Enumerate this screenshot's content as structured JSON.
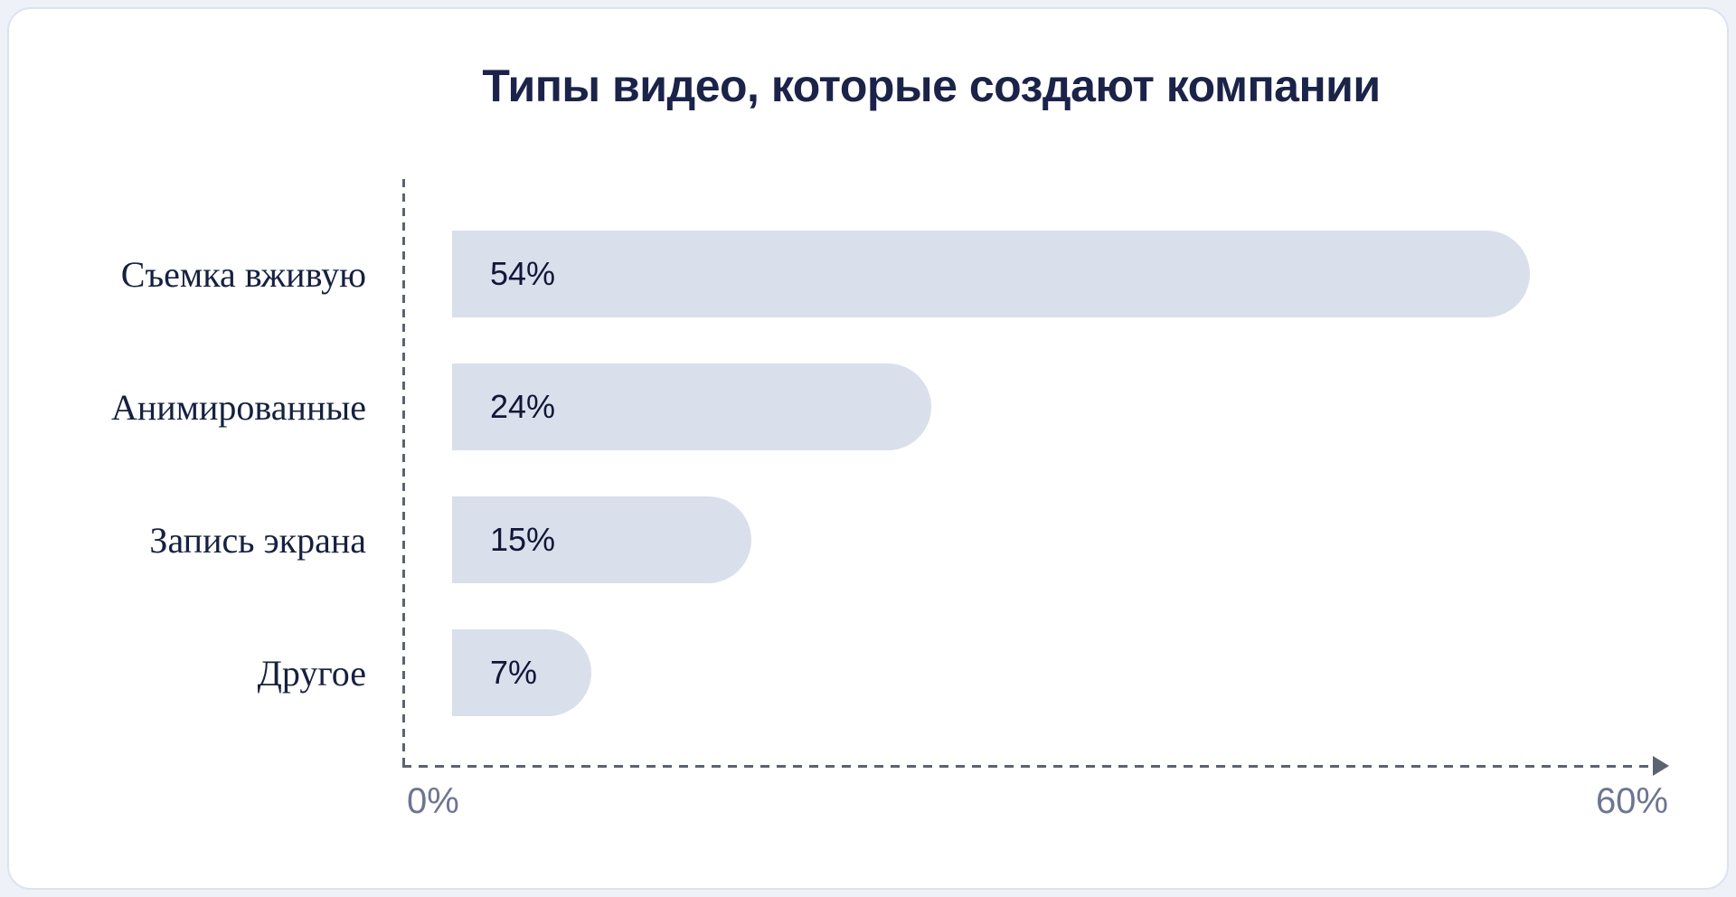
{
  "chart_data": {
    "type": "bar",
    "orientation": "horizontal",
    "title": "Типы видео, которые создают компании",
    "categories": [
      "Съемка вживую",
      "Анимированные",
      "Запись экрана",
      "Другое"
    ],
    "values": [
      54,
      24,
      15,
      7
    ],
    "value_labels": [
      "54%",
      "24%",
      "15%",
      "7%"
    ],
    "xlabel": "",
    "ylabel": "",
    "xlim": [
      0,
      60
    ],
    "x_tick_labels": [
      "0%",
      "60%"
    ],
    "grid": false,
    "legend": false,
    "colors": {
      "bar_fill": "#d9dfeb",
      "title_text": "#1b2349",
      "category_text": "#16203f",
      "value_text": "#101737",
      "axis_line": "#5c6370",
      "tick_text": "#6d7590",
      "card_background": "#ffffff",
      "page_background": "#eef1f7",
      "card_border": "#dce3ef"
    }
  }
}
